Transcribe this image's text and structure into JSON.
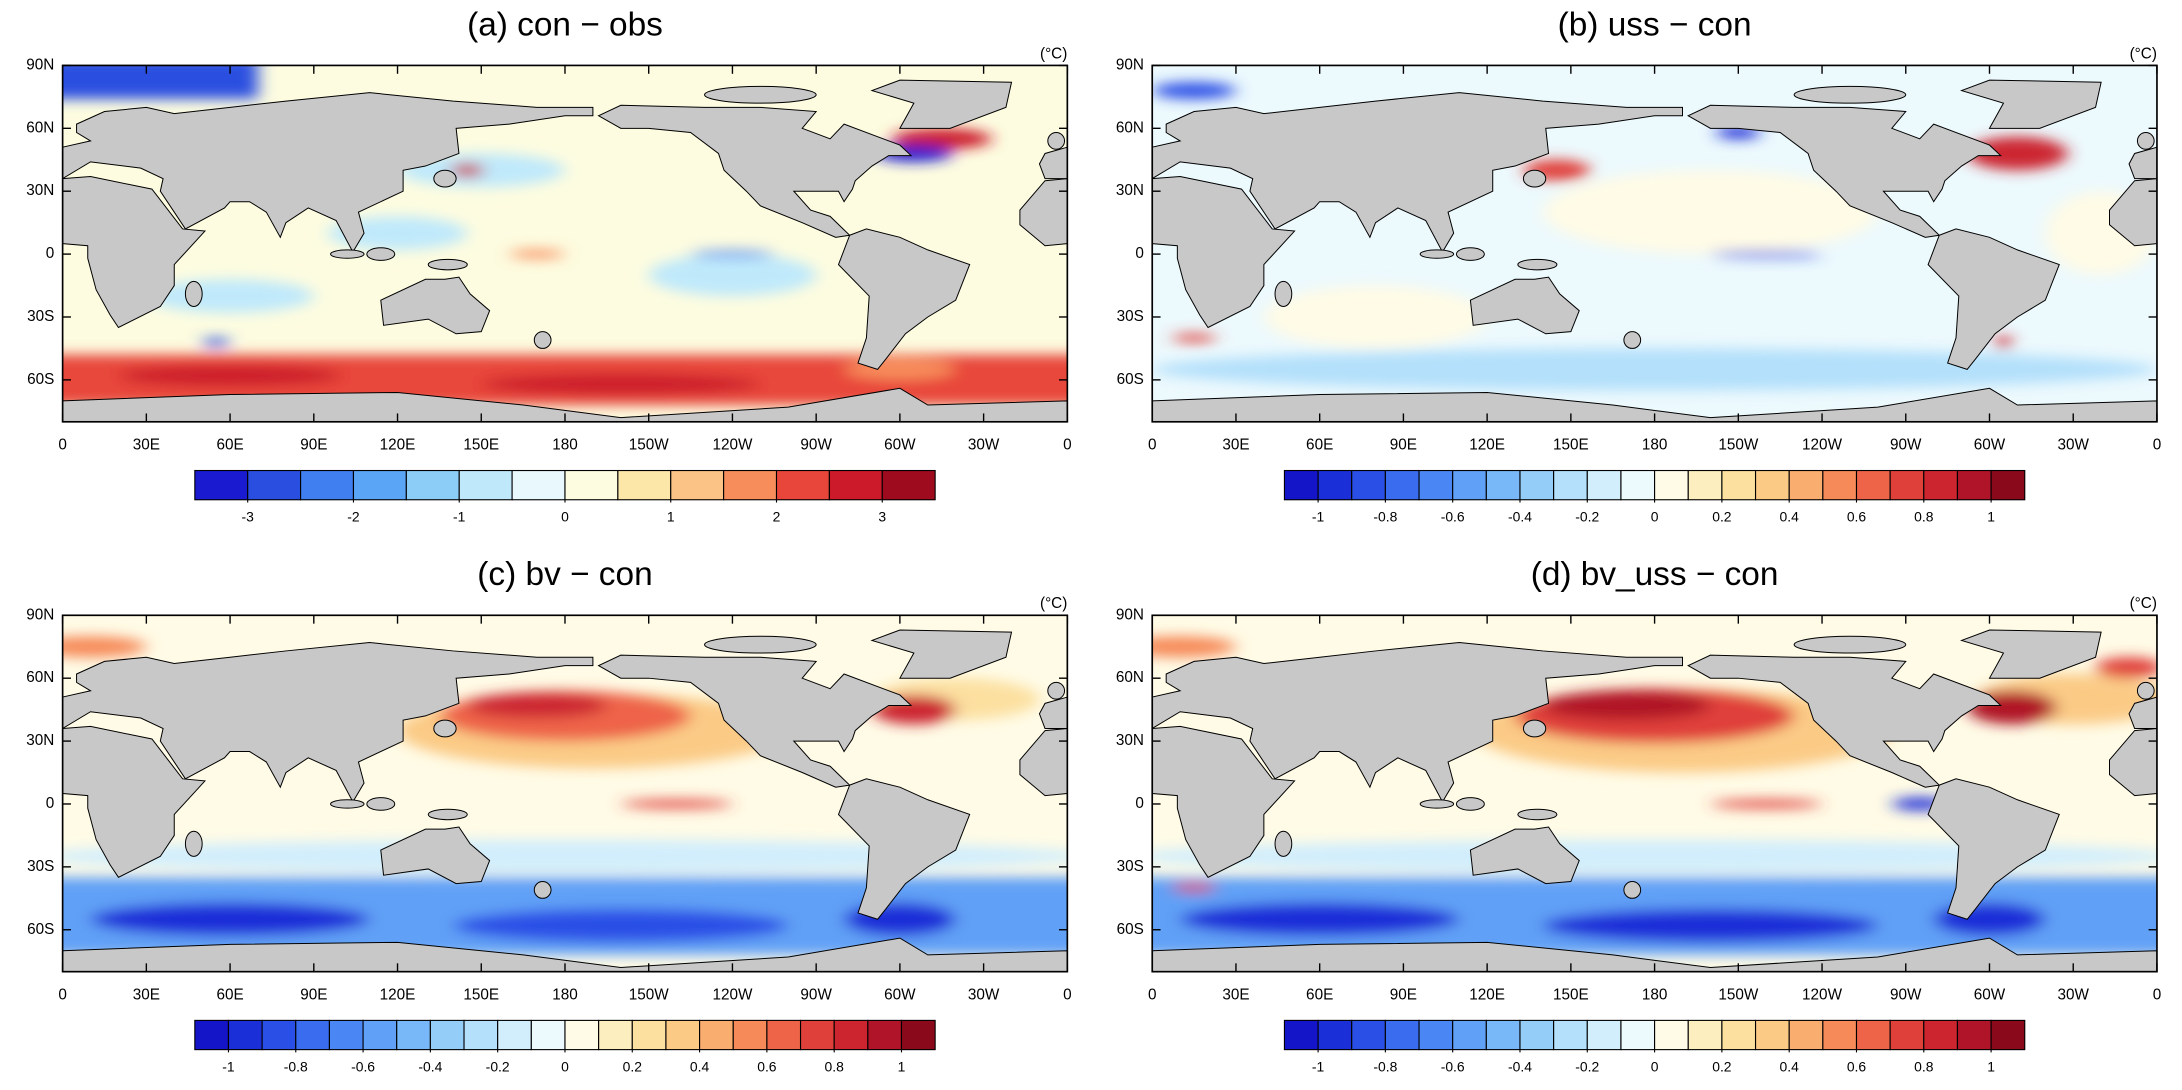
{
  "xlim": [
    0,
    360
  ],
  "ylim": [
    -80,
    90
  ],
  "lon_ticks": [
    0,
    {
      "value": 30,
      "label": "30E"
    },
    {
      "value": 60,
      "label": "60E"
    },
    {
      "value": 90,
      "label": "90E"
    },
    {
      "value": 120,
      "label": "120E"
    },
    {
      "value": 150,
      "label": "150E"
    },
    180,
    {
      "value": 210,
      "label": "150W"
    },
    {
      "value": 240,
      "label": "120W"
    },
    {
      "value": 270,
      "label": "90W"
    },
    {
      "value": 300,
      "label": "60W"
    },
    {
      "value": 330,
      "label": "30W"
    },
    {
      "value": 360,
      "label": "0"
    }
  ],
  "lat_ticks": [
    {
      "value": 90,
      "label": "90N"
    },
    {
      "value": 60,
      "label": "60N"
    },
    {
      "value": 30,
      "label": "30N"
    },
    0,
    {
      "value": -30,
      "label": "30S"
    },
    {
      "value": -60,
      "label": "60S"
    }
  ],
  "panels": [
    {
      "title": "(a) con − obs",
      "unit": "(°C)",
      "colorbar": {
        "range": [
          -3.5,
          3.5
        ],
        "ticks": [
          -3,
          -2,
          -1,
          0,
          1,
          2,
          3
        ],
        "colors": [
          "#1a1ad0",
          "#2a4fe0",
          "#3f7ff0",
          "#5aa5f5",
          "#8ccdf8",
          "#bfe9fb",
          "#e8f8fd",
          "#fdfce0",
          "#fde7a8",
          "#fbc486",
          "#f88d5c",
          "#e8463a",
          "#cc1a2a",
          "#9e0a1e"
        ]
      }
    },
    {
      "title": "(b) uss − con",
      "unit": "(°C)",
      "colorbar": {
        "range": [
          -1.1,
          1.1
        ],
        "ticks": [
          -1,
          -0.8,
          -0.6,
          -0.4,
          -0.2,
          0,
          0.2,
          0.4,
          0.6,
          0.8,
          1
        ],
        "colors": [
          "#1414c8",
          "#1a2fd8",
          "#2a4fe6",
          "#3a6cf0",
          "#4b87f4",
          "#60a0f6",
          "#79b8f8",
          "#95cdf9",
          "#b4e0fb",
          "#d2eefc",
          "#ecf9fd",
          "#fffbe6",
          "#fdeec0",
          "#fce0a0",
          "#fbcb86",
          "#f9ad6e",
          "#f68a58",
          "#ee6448",
          "#e0403a",
          "#cc2530",
          "#b01428",
          "#8a0a1c"
        ]
      }
    },
    {
      "title": "(c) bv − con",
      "unit": "(°C)",
      "colorbar": {
        "range": [
          -1.1,
          1.1
        ],
        "ticks": [
          -1,
          -0.8,
          -0.6,
          -0.4,
          -0.2,
          0,
          0.2,
          0.4,
          0.6,
          0.8,
          1
        ],
        "colors": [
          "#1414c8",
          "#1a2fd8",
          "#2a4fe6",
          "#3a6cf0",
          "#4b87f4",
          "#60a0f6",
          "#79b8f8",
          "#95cdf9",
          "#b4e0fb",
          "#d2eefc",
          "#ecf9fd",
          "#fffbe6",
          "#fdeec0",
          "#fce0a0",
          "#fbcb86",
          "#f9ad6e",
          "#f68a58",
          "#ee6448",
          "#e0403a",
          "#cc2530",
          "#b01428",
          "#8a0a1c"
        ]
      }
    },
    {
      "title": "(d) bv_uss − con",
      "unit": "(°C)",
      "colorbar": {
        "range": [
          -1.1,
          1.1
        ],
        "ticks": [
          -1,
          -0.8,
          -0.6,
          -0.4,
          -0.2,
          0,
          0.2,
          0.4,
          0.6,
          0.8,
          1
        ],
        "colors": [
          "#1414c8",
          "#1a2fd8",
          "#2a4fe6",
          "#3a6cf0",
          "#4b87f4",
          "#60a0f6",
          "#79b8f8",
          "#95cdf9",
          "#b4e0fb",
          "#d2eefc",
          "#ecf9fd",
          "#fffbe6",
          "#fdeec0",
          "#fce0a0",
          "#fbcb86",
          "#f9ad6e",
          "#f68a58",
          "#ee6448",
          "#e0403a",
          "#cc2530",
          "#b01428",
          "#8a0a1c"
        ]
      }
    }
  ]
}
